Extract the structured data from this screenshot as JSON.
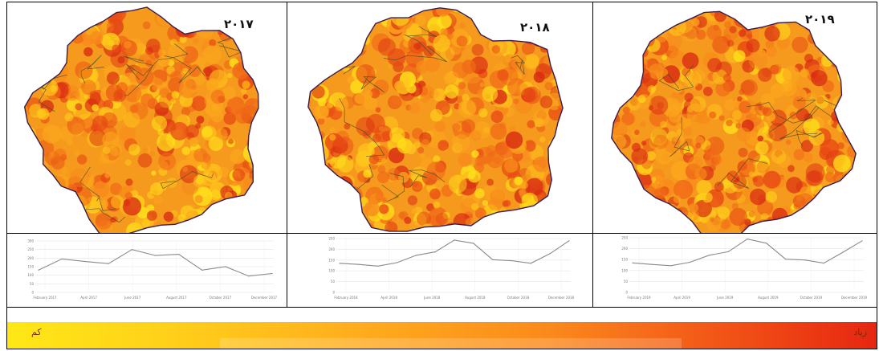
{
  "maps": [
    {
      "year": "۲۰۱۷"
    },
    {
      "year": "۲۰۱۸"
    },
    {
      "year": "۲۰۱۹"
    }
  ],
  "chart_data": [
    {
      "type": "line",
      "ylim": [
        0,
        300
      ],
      "yticks": [
        "300",
        "250",
        "200",
        "150",
        "100",
        "50",
        "0"
      ],
      "x_ticks": [
        "February 2017",
        "April 2017",
        "June 2017",
        "August 2017",
        "October 2017",
        "December 2017"
      ],
      "values": [
        130,
        195,
        180,
        168,
        250,
        215,
        222,
        130,
        150,
        95,
        110
      ]
    },
    {
      "type": "line",
      "ylim": [
        0,
        250
      ],
      "yticks": [
        "250",
        "200",
        "150",
        "100",
        "50",
        "0"
      ],
      "x_ticks": [
        "February 2018",
        "April 2018",
        "June 2018",
        "August 2018",
        "October 2018",
        "December 2018"
      ],
      "values": [
        135,
        130,
        122,
        138,
        172,
        188,
        243,
        228,
        152,
        147,
        135,
        180,
        240
      ]
    },
    {
      "type": "line",
      "ylim": [
        0,
        250
      ],
      "yticks": [
        "250",
        "200",
        "150",
        "100",
        "50",
        "0"
      ],
      "x_ticks": [
        "February 2019",
        "April 2019",
        "June 2019",
        "August 2019",
        "October 2019",
        "December 2019"
      ],
      "values": [
        135,
        128,
        122,
        138,
        170,
        186,
        244,
        225,
        152,
        148,
        134,
        184,
        236
      ]
    }
  ],
  "legend": {
    "low_label": "کم",
    "high_label": "زیاد"
  }
}
